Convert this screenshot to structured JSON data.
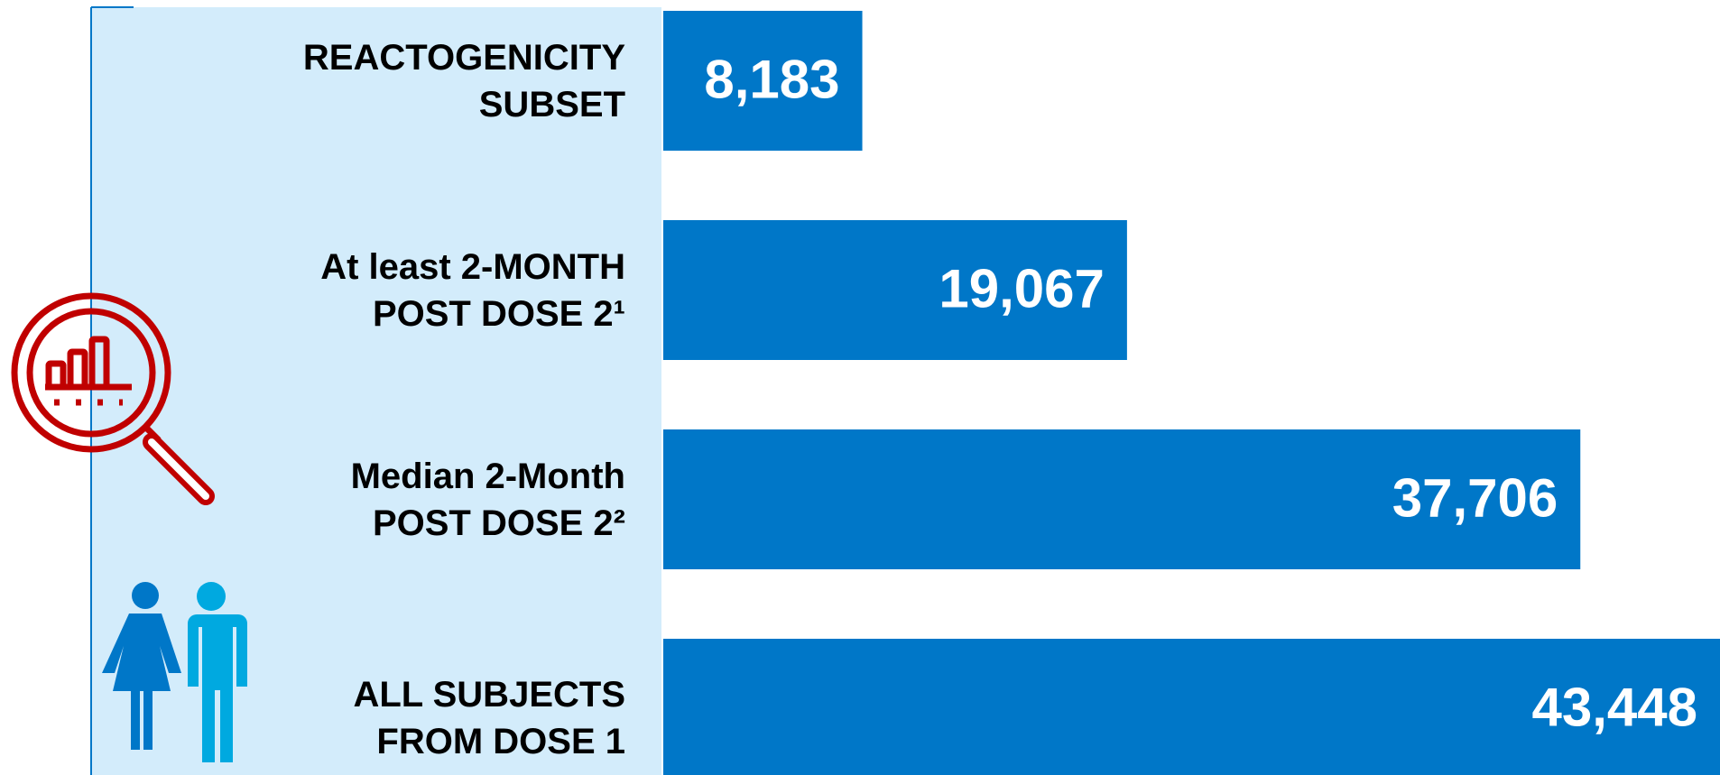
{
  "chart_data": {
    "type": "bar",
    "orientation": "horizontal",
    "categories": [
      "REACTOGENICITY SUBSET",
      "At least 2-MONTH POST DOSE 2¹",
      "Median 2-Month POST DOSE 2²",
      "ALL SUBJECTS FROM DOSE 1"
    ],
    "values": [
      8183,
      19067,
      37706,
      43448
    ],
    "value_labels": [
      "8,183",
      "19,067",
      "37,706",
      "43,448"
    ],
    "color": "#0077c8"
  }
}
